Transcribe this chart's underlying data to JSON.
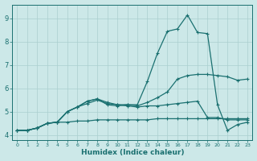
{
  "xlabel": "Humidex (Indice chaleur)",
  "bg_color": "#cce8e8",
  "grid_color": "#aacfcf",
  "line_color": "#1a7070",
  "xlim": [
    -0.5,
    23.5
  ],
  "ylim": [
    3.8,
    9.6
  ],
  "xticks": [
    0,
    1,
    2,
    3,
    4,
    5,
    6,
    7,
    8,
    9,
    10,
    11,
    12,
    13,
    14,
    15,
    16,
    17,
    18,
    19,
    20,
    21,
    22,
    23
  ],
  "yticks": [
    4,
    5,
    6,
    7,
    8,
    9
  ],
  "line1_x": [
    0,
    1,
    2,
    3,
    4,
    5,
    6,
    7,
    8,
    9,
    10,
    11,
    12,
    13,
    14,
    15,
    16,
    17,
    18,
    19,
    20,
    21,
    22,
    23
  ],
  "line1_y": [
    4.2,
    4.2,
    4.3,
    4.5,
    4.55,
    4.55,
    4.6,
    4.6,
    4.65,
    4.65,
    4.65,
    4.65,
    4.65,
    4.65,
    4.7,
    4.7,
    4.7,
    4.7,
    4.7,
    4.7,
    4.7,
    4.7,
    4.7,
    4.7
  ],
  "line2_x": [
    0,
    1,
    2,
    3,
    4,
    5,
    6,
    7,
    8,
    9,
    10,
    11,
    12,
    13,
    14,
    15,
    16,
    17,
    18,
    19,
    20,
    21,
    22,
    23
  ],
  "line2_y": [
    4.2,
    4.2,
    4.3,
    4.5,
    4.55,
    5.0,
    5.2,
    5.35,
    5.5,
    5.35,
    5.3,
    5.25,
    5.2,
    5.25,
    5.25,
    5.3,
    5.35,
    5.4,
    5.45,
    4.75,
    4.75,
    4.65,
    4.65,
    4.65
  ],
  "line3_x": [
    0,
    1,
    2,
    3,
    4,
    5,
    6,
    7,
    8,
    9,
    10,
    11,
    12,
    13,
    14,
    15,
    16,
    17,
    18,
    19,
    20,
    21,
    22,
    23
  ],
  "line3_y": [
    4.2,
    4.2,
    4.3,
    4.5,
    4.55,
    5.0,
    5.2,
    5.45,
    5.55,
    5.4,
    5.3,
    5.3,
    5.25,
    5.4,
    5.6,
    5.85,
    6.4,
    6.55,
    6.6,
    6.6,
    6.55,
    6.5,
    6.35,
    6.4
  ],
  "line4_x": [
    0,
    1,
    2,
    3,
    4,
    5,
    6,
    7,
    8,
    9,
    10,
    11,
    12,
    13,
    14,
    15,
    16,
    17,
    18,
    19,
    20,
    21,
    22,
    23
  ],
  "line4_y": [
    4.2,
    4.2,
    4.3,
    4.5,
    4.55,
    5.0,
    5.2,
    5.45,
    5.55,
    5.3,
    5.25,
    5.3,
    5.3,
    6.3,
    7.5,
    8.45,
    8.55,
    9.15,
    8.4,
    8.35,
    5.3,
    4.2,
    4.45,
    4.55
  ]
}
